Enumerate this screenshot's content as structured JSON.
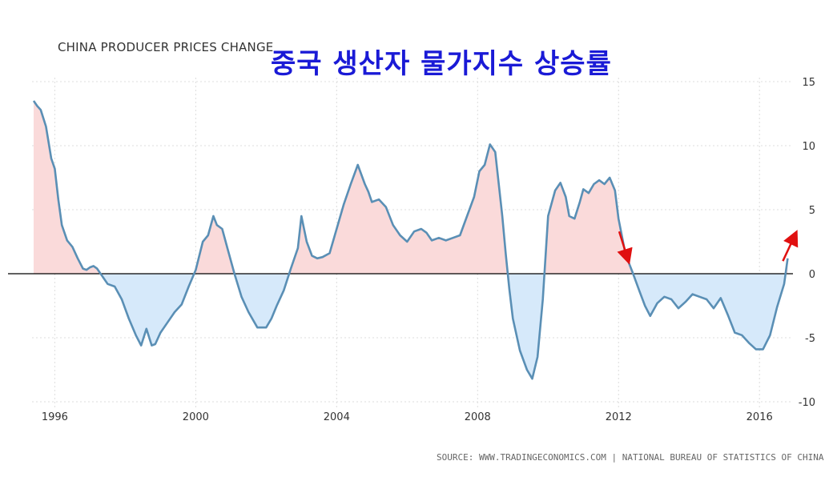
{
  "chart_data": {
    "type": "area",
    "title": "CHINA PRODUCER PRICES CHANGE",
    "overlay_title": "중국 생산자 물가지수 상승률",
    "source": "SOURCE: WWW.TRADINGECONOMICS.COM | NATIONAL BUREAU OF STATISTICS OF CHINA",
    "xlim": [
      1995.4,
      2016.95
    ],
    "ylim": [
      -10,
      15
    ],
    "x_ticks": [
      1996,
      2000,
      2004,
      2008,
      2012,
      2016
    ],
    "x_tick_labels": [
      "1996",
      "2000",
      "2004",
      "2008",
      "2012",
      "2016"
    ],
    "y_ticks": [
      15,
      10,
      5,
      0,
      -5,
      -10
    ],
    "y_tick_labels": [
      "15",
      "10",
      "5",
      "0",
      "-5",
      "-10"
    ],
    "grid": true,
    "colors": {
      "line": "#5a8fb5",
      "positive_fill": "#fadada",
      "negative_fill": "#d6e9fa",
      "zero_line": "#000000",
      "annotation_arrows": "#e01010"
    },
    "annotations": [
      {
        "type": "arrow-down",
        "x": 2012.2,
        "y": 0.8
      },
      {
        "type": "arrow-up",
        "x": 2016.8,
        "y": 1.3
      }
    ],
    "series": [
      {
        "x": [
          1995.4,
          1995.5,
          1995.6,
          1995.75,
          1995.9,
          1996.0,
          1996.1,
          1996.2,
          1996.35,
          1996.5,
          1996.65,
          1996.8,
          1996.9,
          1997.0,
          1997.1,
          1997.2,
          1997.35,
          1997.5,
          1997.7,
          1997.9,
          1998.1,
          1998.3,
          1998.45,
          1998.6,
          1998.75,
          1998.85,
          1999.0,
          1999.2,
          1999.4,
          1999.6,
          1999.8,
          2000.0,
          2000.2,
          2000.35,
          2000.5,
          2000.6,
          2000.75,
          2000.9,
          2001.1,
          2001.3,
          2001.5,
          2001.75,
          2002.0,
          2002.15,
          2002.3,
          2002.5,
          2002.7,
          2002.9,
          2003.0,
          2003.15,
          2003.3,
          2003.45,
          2003.6,
          2003.8,
          2004.0,
          2004.2,
          2004.4,
          2004.6,
          2004.8,
          2004.9,
          2005.0,
          2005.2,
          2005.4,
          2005.6,
          2005.8,
          2006.0,
          2006.2,
          2006.4,
          2006.55,
          2006.7,
          2006.9,
          2007.1,
          2007.3,
          2007.5,
          2007.7,
          2007.9,
          2008.05,
          2008.2,
          2008.35,
          2008.5,
          2008.6,
          2008.7,
          2008.8,
          2008.9,
          2009.0,
          2009.2,
          2009.4,
          2009.55,
          2009.7,
          2009.85,
          2010.0,
          2010.2,
          2010.35,
          2010.5,
          2010.6,
          2010.75,
          2010.9,
          2011.0,
          2011.15,
          2011.3,
          2011.45,
          2011.6,
          2011.75,
          2011.9,
          2012.0,
          2012.2,
          2012.4,
          2012.6,
          2012.75,
          2012.9,
          2013.1,
          2013.3,
          2013.5,
          2013.7,
          2013.9,
          2014.1,
          2014.3,
          2014.5,
          2014.7,
          2014.9,
          2015.1,
          2015.3,
          2015.5,
          2015.7,
          2015.9,
          2016.1,
          2016.3,
          2016.5,
          2016.7,
          2016.8
        ],
        "y": [
          13.5,
          13.1,
          12.8,
          11.5,
          9.0,
          8.2,
          5.8,
          3.8,
          2.6,
          2.1,
          1.2,
          0.4,
          0.3,
          0.5,
          0.6,
          0.4,
          -0.2,
          -0.8,
          -1.0,
          -2.0,
          -3.5,
          -4.8,
          -5.6,
          -4.3,
          -5.6,
          -5.5,
          -4.6,
          -3.8,
          -3.0,
          -2.4,
          -1.0,
          0.3,
          2.5,
          3.0,
          4.5,
          3.8,
          3.5,
          2.0,
          0.0,
          -1.8,
          -3.0,
          -4.2,
          -4.2,
          -3.5,
          -2.5,
          -1.3,
          0.4,
          2.0,
          4.5,
          2.5,
          1.4,
          1.2,
          1.3,
          1.6,
          3.5,
          5.4,
          7.0,
          8.5,
          7.0,
          6.4,
          5.6,
          5.8,
          5.2,
          3.8,
          3.0,
          2.5,
          3.3,
          3.5,
          3.2,
          2.6,
          2.8,
          2.6,
          2.8,
          3.0,
          4.5,
          6.0,
          8.0,
          8.5,
          10.1,
          9.5,
          7.0,
          4.5,
          1.5,
          -1.2,
          -3.5,
          -6.0,
          -7.5,
          -8.2,
          -6.5,
          -2.0,
          4.5,
          6.5,
          7.1,
          6.0,
          4.5,
          4.3,
          5.6,
          6.6,
          6.3,
          7.0,
          7.3,
          7.0,
          7.5,
          6.5,
          4.3,
          1.5,
          0.1,
          -1.4,
          -2.5,
          -3.3,
          -2.3,
          -1.8,
          -2.0,
          -2.7,
          -2.2,
          -1.6,
          -1.8,
          -2.0,
          -2.7,
          -1.9,
          -3.2,
          -4.6,
          -4.8,
          -5.4,
          -5.9,
          -5.9,
          -4.8,
          -2.6,
          -0.8,
          1.2
        ]
      }
    ]
  }
}
